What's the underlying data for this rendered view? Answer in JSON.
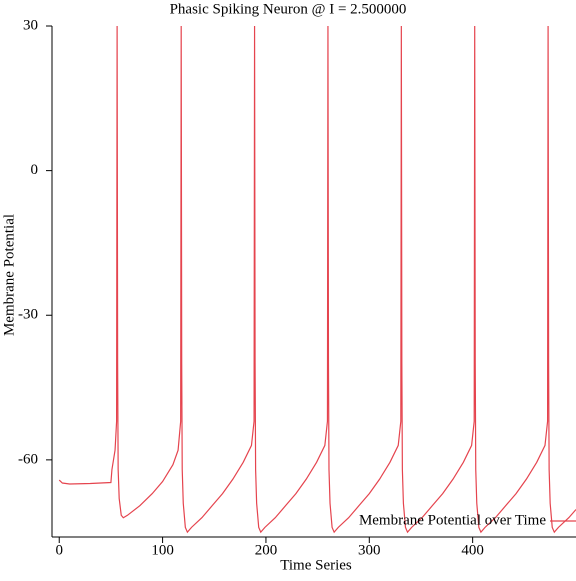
{
  "chart_data": {
    "type": "line",
    "title": "Phasic Spiking Neuron @ I = 2.500000",
    "xlabel": "Time Series",
    "ylabel": "Membrane Potential",
    "xlim": [
      -7,
      500
    ],
    "ylim": [
      -76,
      30
    ],
    "xticks": [
      0,
      100,
      200,
      300,
      400
    ],
    "yticks": [
      -60,
      -30,
      0,
      30
    ],
    "grid": false,
    "legend": "lower right",
    "x": [
      0,
      3,
      10,
      30,
      50,
      51,
      54,
      55.5,
      56,
      56.5,
      57,
      58,
      60,
      62,
      66,
      78,
      90,
      100,
      110,
      115,
      117.5,
      118,
      118.5,
      119,
      120,
      122,
      124,
      128,
      138,
      148,
      158,
      168,
      178,
      186,
      188.5,
      189,
      189.5,
      190,
      191,
      193,
      195,
      199,
      209,
      219,
      229,
      239,
      249,
      257,
      259.5,
      260,
      260.5,
      261,
      262,
      264,
      266,
      270,
      280,
      290,
      300,
      310,
      320,
      328,
      330.5,
      331,
      331.5,
      332,
      333,
      335,
      337,
      341,
      351,
      361,
      371,
      381,
      391,
      399,
      401.5,
      402,
      402.5,
      403,
      404,
      406,
      408,
      412,
      422,
      432,
      442,
      452,
      462,
      470,
      472.5,
      473,
      473.5,
      474,
      475,
      477,
      479,
      483,
      493,
      500
    ],
    "series": [
      {
        "name": "Membrane Potential over Time",
        "color": "#e5444e",
        "values": [
          -64.2,
          -64.8,
          -65,
          -64.9,
          -64.7,
          -62,
          -58,
          -52,
          30,
          -40,
          -62,
          -68,
          -71.5,
          -72,
          -71.5,
          -69.5,
          -67,
          -64.5,
          -61,
          -58,
          -52,
          30,
          -40,
          -62,
          -69,
          -74,
          -75,
          -74,
          -72,
          -69.5,
          -67,
          -64,
          -60.5,
          -57,
          -52,
          30,
          -40,
          -62,
          -69,
          -74,
          -75,
          -74,
          -72,
          -69.5,
          -67,
          -64,
          -60.5,
          -57,
          -52,
          30,
          -40,
          -62,
          -69,
          -74,
          -75,
          -74,
          -72,
          -69.5,
          -67,
          -64,
          -60.5,
          -57,
          -52,
          30,
          -40,
          -62,
          -69,
          -74,
          -75,
          -74,
          -72,
          -69.5,
          -67,
          -64,
          -60.5,
          -57,
          -52,
          30,
          -40,
          -62,
          -69,
          -74,
          -75,
          -74,
          -72,
          -69.5,
          -67,
          -64,
          -60.5,
          -57,
          -52,
          30,
          -40,
          -62,
          -69,
          -74,
          -75,
          -74,
          -72,
          -70.3
        ]
      }
    ]
  }
}
